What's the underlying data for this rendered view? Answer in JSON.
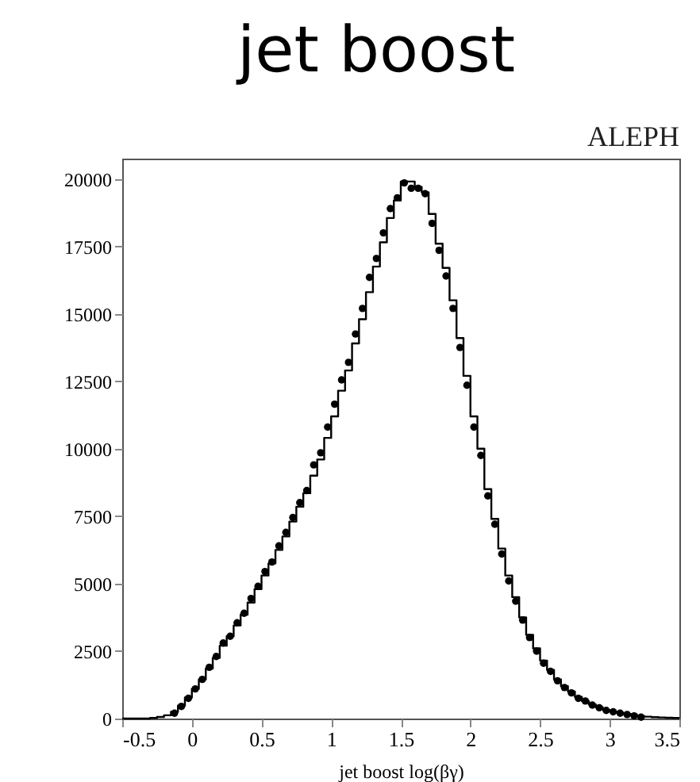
{
  "chart_data": {
    "type": "histogram",
    "title": "jet boost",
    "xlabel": "jet boost log(βγ)",
    "annotations": [
      "ALEPH"
    ],
    "bins": [
      -0.5,
      -0.45,
      -0.4,
      -0.35,
      -0.3,
      -0.25,
      -0.2,
      -0.15,
      -0.1,
      -0.05,
      0,
      0.05,
      0.1,
      0.15,
      0.2,
      0.25,
      0.3,
      0.35,
      0.4,
      0.45,
      0.5,
      0.55,
      0.6,
      0.65,
      0.7,
      0.75,
      0.8,
      0.85,
      0.9,
      0.95,
      1,
      1.05,
      1.1,
      1.15,
      1.2,
      1.25,
      1.3,
      1.35,
      1.4,
      1.45,
      1.5,
      1.55,
      1.6,
      1.65,
      1.7,
      1.75,
      1.8,
      1.85,
      1.9,
      1.95,
      2,
      2.05,
      2.1,
      2.15,
      2.2,
      2.25,
      2.3,
      2.35,
      2.4,
      2.45,
      2.5,
      2.55,
      2.6,
      2.65,
      2.7,
      2.75,
      2.8,
      2.85,
      2.9,
      2.95,
      3,
      3.05,
      3.1,
      3.15,
      3.2,
      3.25,
      3.3,
      3.35,
      3.4,
      3.45,
      3.5
    ],
    "values": [
      0,
      0,
      0,
      0,
      20,
      60,
      120,
      250,
      480,
      780,
      1100,
      1450,
      1850,
      2250,
      2700,
      3050,
      3450,
      3850,
      4300,
      4800,
      5300,
      5750,
      6250,
      6750,
      7300,
      7850,
      8350,
      9000,
      9600,
      10400,
      11200,
      12150,
      12900,
      13900,
      14800,
      15800,
      16750,
      17650,
      18550,
      19200,
      19900,
      19900,
      19700,
      19500,
      18700,
      17600,
      16700,
      15500,
      14100,
      12700,
      11200,
      10000,
      8500,
      7400,
      6300,
      5300,
      4500,
      3750,
      3100,
      2600,
      2150,
      1800,
      1450,
      1200,
      1000,
      800,
      650,
      520,
      420,
      320,
      260,
      210,
      170,
      130,
      90,
      70,
      50,
      40,
      30,
      20
    ],
    "color": "#000000",
    "series": [
      {
        "type": "scatter",
        "color": "#000000",
        "x": [
          -0.125,
          -0.075,
          -0.025,
          0.025,
          0.075,
          0.125,
          0.175,
          0.225,
          0.275,
          0.325,
          0.375,
          0.425,
          0.475,
          0.525,
          0.575,
          0.625,
          0.675,
          0.725,
          0.775,
          0.825,
          0.875,
          0.925,
          0.975,
          1.025,
          1.075,
          1.125,
          1.175,
          1.225,
          1.275,
          1.325,
          1.375,
          1.425,
          1.475,
          1.525,
          1.575,
          1.625,
          1.675,
          1.725,
          1.775,
          1.825,
          1.875,
          1.925,
          1.975,
          2.025,
          2.075,
          2.125,
          2.175,
          2.225,
          2.275,
          2.325,
          2.375,
          2.425,
          2.475,
          2.525,
          2.575,
          2.625,
          2.675,
          2.725,
          2.775,
          2.825,
          2.875,
          2.925,
          2.975,
          3.025,
          3.075,
          3.125,
          3.175,
          3.225
        ],
        "values": [
          200,
          450,
          750,
          1100,
          1450,
          1900,
          2300,
          2800,
          3050,
          3550,
          3900,
          4450,
          4900,
          5450,
          5800,
          6400,
          6900,
          7450,
          8000,
          8450,
          9400,
          9850,
          10800,
          11650,
          12550,
          13200,
          14250,
          15200,
          16350,
          17050,
          18000,
          18900,
          19300,
          19850,
          19650,
          19650,
          19450,
          18350,
          17350,
          16400,
          15200,
          13750,
          12350,
          10800,
          9750,
          8250,
          7200,
          6100,
          5100,
          4350,
          3650,
          3000,
          2500,
          2050,
          1750,
          1400,
          1150,
          950,
          750,
          650,
          500,
          400,
          300,
          250,
          200,
          150,
          100,
          50
        ]
      }
    ],
    "marker": "circle",
    "xlim": [
      -0.5,
      3.5
    ],
    "xticks": [
      -0.5,
      0,
      0.5,
      1,
      1.5,
      2,
      2.5,
      3,
      3.5
    ],
    "ylim": [
      0,
      20750
    ],
    "yticks": [
      0,
      2500,
      5000,
      7500,
      10000,
      12500,
      15000,
      17500,
      20000
    ],
    "grid": false
  }
}
